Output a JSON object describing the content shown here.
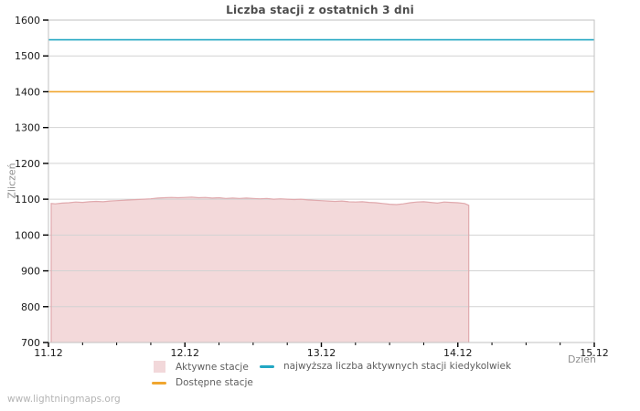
{
  "watermark": "www.lightningmaps.org",
  "legend": {
    "items": [
      {
        "label": "Aktywne stacje",
        "swatch": "area-square",
        "color": "#f2d8da"
      },
      {
        "label": "najwyższa liczba aktywnych stacji kiedykolwiek",
        "swatch": "line",
        "color": "#22a7c3"
      },
      {
        "label": "Dostępne stacje",
        "swatch": "line",
        "color": "#f0a62f"
      }
    ]
  },
  "chart_data": {
    "type": "area",
    "title": "Liczba stacji z ostatnich 3 dni",
    "xlabel": "Dzień",
    "ylabel": "Zliczeń",
    "ylim": [
      700,
      1600
    ],
    "xlim": [
      0,
      4
    ],
    "y_ticks": [
      700,
      800,
      900,
      1000,
      1100,
      1200,
      1300,
      1400,
      1500,
      1600
    ],
    "x_ticks": [
      {
        "pos": 0,
        "label": "11.12"
      },
      {
        "pos": 1,
        "label": "12.12"
      },
      {
        "pos": 2,
        "label": "13.12"
      },
      {
        "pos": 3,
        "label": "14.12"
      },
      {
        "pos": 4,
        "label": "15.12"
      }
    ],
    "x_minor_step": 0.25,
    "grid": "horizontal",
    "colors": {
      "grid": "#d2d2d2",
      "border": "#c2c2c2",
      "tick": "#000000",
      "tick_label": "#1a1a1a"
    },
    "series": [
      {
        "name": "Aktywne stacje",
        "type": "area",
        "color": "#f3d9da",
        "edge_color": "#e0a9ad",
        "x": [
          0.02,
          0.05,
          0.1,
          0.15,
          0.2,
          0.25,
          0.3,
          0.35,
          0.4,
          0.45,
          0.5,
          0.55,
          0.6,
          0.65,
          0.7,
          0.75,
          0.8,
          0.85,
          0.9,
          0.95,
          1.0,
          1.05,
          1.1,
          1.15,
          1.2,
          1.25,
          1.3,
          1.35,
          1.4,
          1.45,
          1.5,
          1.55,
          1.6,
          1.65,
          1.7,
          1.75,
          1.8,
          1.85,
          1.9,
          1.95,
          2.0,
          2.05,
          2.1,
          2.15,
          2.2,
          2.25,
          2.3,
          2.35,
          2.4,
          2.45,
          2.5,
          2.55,
          2.6,
          2.65,
          2.7,
          2.75,
          2.8,
          2.85,
          2.9,
          2.95,
          3.0,
          3.05,
          3.08
        ],
        "values": [
          1088,
          1087,
          1089,
          1090,
          1092,
          1091,
          1093,
          1094,
          1093,
          1095,
          1096,
          1097,
          1098,
          1099,
          1100,
          1101,
          1103,
          1104,
          1105,
          1104,
          1105,
          1106,
          1104,
          1105,
          1103,
          1104,
          1102,
          1103,
          1102,
          1103,
          1102,
          1101,
          1102,
          1100,
          1101,
          1100,
          1099,
          1100,
          1098,
          1097,
          1096,
          1095,
          1094,
          1095,
          1093,
          1092,
          1093,
          1091,
          1090,
          1088,
          1086,
          1085,
          1087,
          1090,
          1092,
          1093,
          1091,
          1089,
          1092,
          1091,
          1090,
          1088,
          1083
        ]
      },
      {
        "name": "najwyższa liczba aktywnych stacji kiedykolwiek",
        "type": "hline",
        "color": "#22a7c3",
        "value": 1545
      },
      {
        "name": "Dostępne stacje",
        "type": "hline",
        "color": "#f0a62f",
        "value": 1400
      }
    ]
  }
}
